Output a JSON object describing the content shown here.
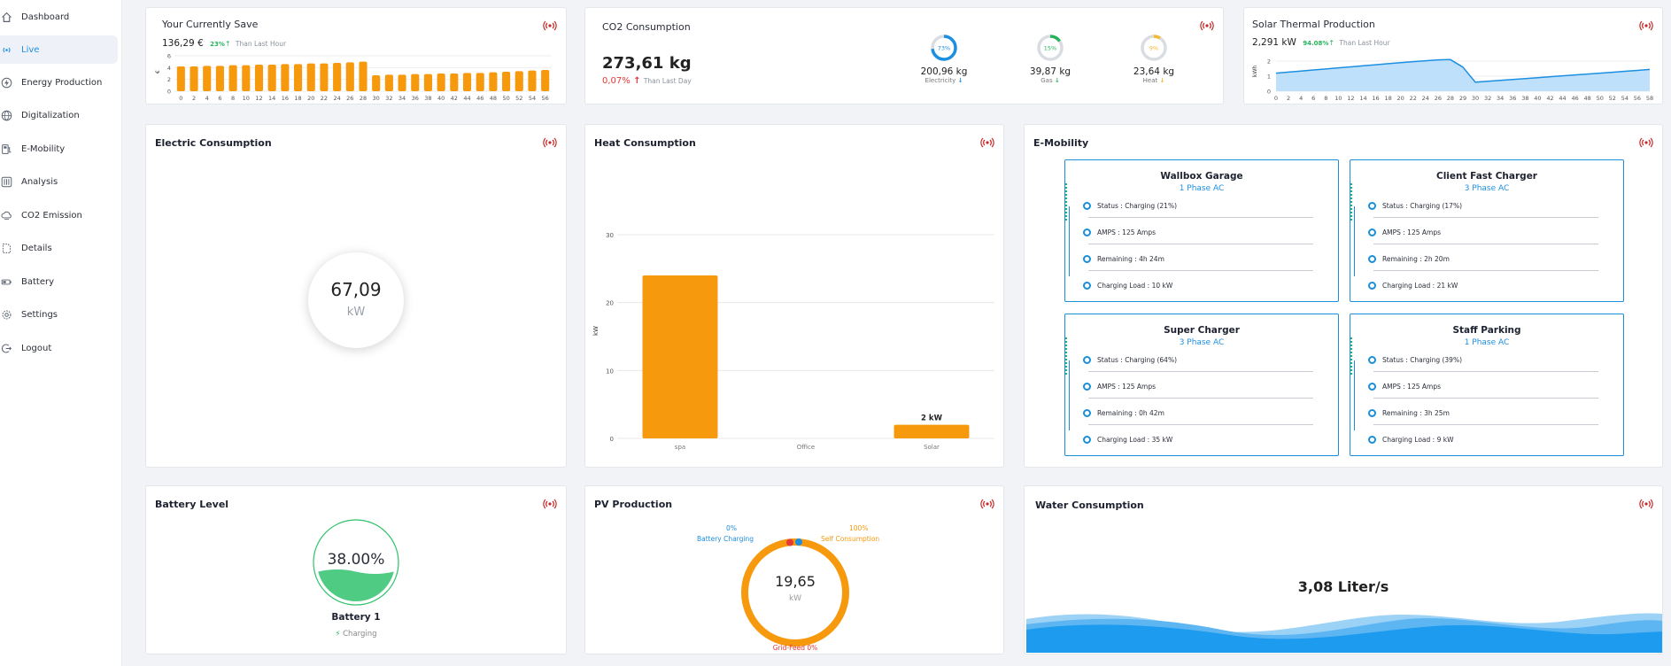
{
  "sidebar": {
    "items": [
      {
        "label": "Dashboard",
        "icon": "home-icon"
      },
      {
        "label": "Live",
        "icon": "broadcast-icon"
      },
      {
        "label": "Energy Production",
        "icon": "bolt-icon"
      },
      {
        "label": "Digitalization",
        "icon": "globe-icon"
      },
      {
        "label": "E-Mobility",
        "icon": "ev-station-icon"
      },
      {
        "label": "Analysis",
        "icon": "sliders-icon"
      },
      {
        "label": "CO2 Emission",
        "icon": "cloud-icon"
      },
      {
        "label": "Details",
        "icon": "details-icon"
      },
      {
        "label": "Battery",
        "icon": "battery-icon"
      },
      {
        "label": "Settings",
        "icon": "gear-icon"
      },
      {
        "label": "Logout",
        "icon": "logout-icon"
      }
    ],
    "active": "Live"
  },
  "save": {
    "title": "Your Currently Save",
    "amount": "136,29 €",
    "change": "23%",
    "change_note": "Than Last Hour",
    "y_label": "€",
    "chart_data": {
      "type": "bar",
      "categories": [
        "0",
        "2",
        "4",
        "6",
        "8",
        "10",
        "12",
        "14",
        "16",
        "18",
        "20",
        "22",
        "24",
        "26",
        "28",
        "30",
        "32",
        "34",
        "36",
        "38",
        "40",
        "42",
        "44",
        "46",
        "48",
        "50",
        "52",
        "54",
        "56"
      ],
      "values": [
        4.2,
        4.2,
        4.3,
        4.3,
        4.4,
        4.4,
        4.5,
        4.5,
        4.6,
        4.6,
        4.7,
        4.7,
        4.8,
        4.9,
        5.0,
        2.7,
        2.8,
        2.8,
        2.9,
        2.9,
        3.0,
        3.0,
        3.1,
        3.1,
        3.2,
        3.3,
        3.4,
        3.5,
        3.6
      ],
      "ylim": [
        0,
        6
      ],
      "yticks": [
        "0",
        "2",
        "4",
        "6"
      ]
    }
  },
  "co2": {
    "title": "CO2 Consumption",
    "total": "273,61 kg",
    "change": "0,07%",
    "change_note": "Than Last Day",
    "items": [
      {
        "pct": "73%",
        "pct_value": 73,
        "value": "200,96 kg",
        "label": "Electricity",
        "color": "#1d8fe1"
      },
      {
        "pct": "15%",
        "pct_value": 15,
        "value": "39,87 kg",
        "label": "Gas",
        "color": "#27b35c"
      },
      {
        "pct": "9%",
        "pct_value": 9,
        "value": "23,64 kg",
        "label": "Heat",
        "color": "#f5b82e"
      }
    ]
  },
  "solar_thermal": {
    "title": "Solar Thermal Production",
    "value": "2,291 kW",
    "change": "94.08%",
    "change_note": "Than Last Hour",
    "y_label": "kWh",
    "chart_data": {
      "type": "area",
      "x": [
        "0",
        "2",
        "4",
        "6",
        "8",
        "10",
        "12",
        "14",
        "16",
        "18",
        "20",
        "22",
        "24",
        "26",
        "28",
        "29",
        "30",
        "32",
        "34",
        "36",
        "38",
        "40",
        "42",
        "44",
        "46",
        "48",
        "50",
        "52",
        "54",
        "56",
        "58"
      ],
      "values": [
        1.2,
        1.27,
        1.34,
        1.41,
        1.48,
        1.55,
        1.62,
        1.69,
        1.76,
        1.83,
        1.9,
        1.96,
        2.02,
        2.08,
        2.1,
        1.6,
        0.6,
        0.66,
        0.72,
        0.78,
        0.84,
        0.9,
        0.96,
        1.02,
        1.08,
        1.14,
        1.2,
        1.26,
        1.32,
        1.38,
        1.45
      ],
      "ylim": [
        0,
        2
      ],
      "yticks": [
        "0",
        "1",
        "2"
      ]
    }
  },
  "electric": {
    "title": "Electric Consumption",
    "value": "67,09",
    "unit": "kW"
  },
  "heat": {
    "title": "Heat Consumption",
    "chart_data": {
      "type": "bar",
      "categories": [
        "spa",
        "Office",
        "Solar"
      ],
      "values": [
        24,
        0,
        2
      ],
      "data_labels": [
        "",
        "",
        "2 kW"
      ],
      "ylabel": "kW",
      "ylim": [
        0,
        30
      ],
      "yticks": [
        "0",
        "10",
        "20",
        "30"
      ]
    }
  },
  "emobility": {
    "title": "E-Mobility",
    "chargers": [
      {
        "name": "Wallbox Garage",
        "phase": "1 Phase AC",
        "status": "Status : Charging (21%)",
        "amps": "AMPS : 125 Amps",
        "remaining": "Remaining : 4h 24m",
        "load": "Charging Load : 10 kW"
      },
      {
        "name": "Client Fast Charger",
        "phase": "3 Phase AC",
        "status": "Status : Charging (17%)",
        "amps": "AMPS : 125 Amps",
        "remaining": "Remaining : 2h 20m",
        "load": "Charging Load : 21 kW"
      },
      {
        "name": "Super Charger",
        "phase": "3 Phase AC",
        "status": "Status : Charging (64%)",
        "amps": "AMPS : 125 Amps",
        "remaining": "Remaining : 0h 42m",
        "load": "Charging Load : 35 kW"
      },
      {
        "name": "Staff Parking",
        "phase": "1 Phase AC",
        "status": "Status : Charging (39%)",
        "amps": "AMPS : 125 Amps",
        "remaining": "Remaining : 3h 25m",
        "load": "Charging Load : 9 kW"
      }
    ]
  },
  "battery": {
    "title": "Battery Level",
    "level": "38.00%",
    "level_value": 0.38,
    "name": "Battery 1",
    "status": "Charging"
  },
  "pv": {
    "title": "PV Production",
    "value": "19,65",
    "unit": "kW",
    "battery_pct": "0%",
    "battery_label": "Battery Charging",
    "self_pct": "100%",
    "self_label": "Self Consumption",
    "grid_label": "Grid-Feed 0%"
  },
  "water": {
    "title": "Water Consumption",
    "value": "3,08 Liter/s"
  },
  "colors": {
    "orange": "#f7990d",
    "blue": "#1d8fe1",
    "green": "#27b35c",
    "red": "#e53935",
    "live": "#c62828"
  }
}
